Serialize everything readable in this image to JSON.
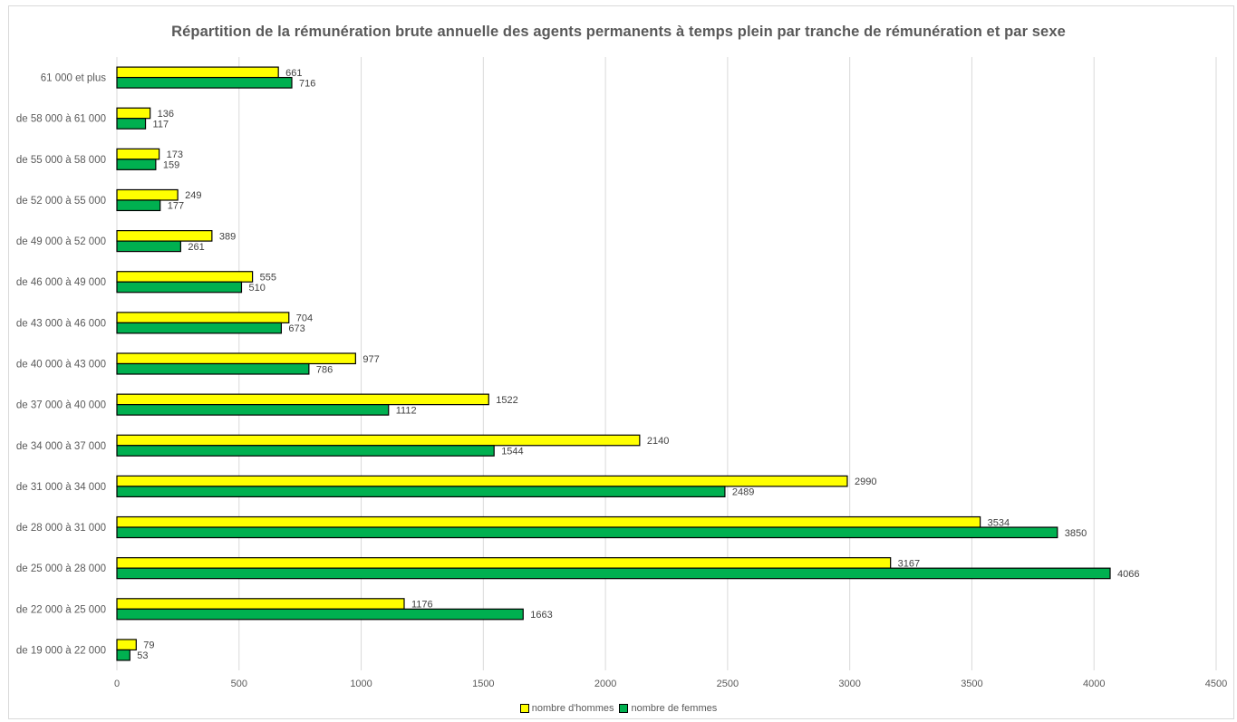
{
  "chart_data": {
    "type": "bar",
    "orientation": "horizontal",
    "title": "Répartition de la rémunération brute annuelle des agents permanents à temps plein par tranche de rémunération et par sexe",
    "categories": [
      "61 000 et plus",
      "de 58 000 à 61 000",
      "de 55 000 à 58 000",
      "de 52 000 à 55 000",
      "de 49 000 à 52 000",
      "de 46 000 à 49 000",
      "de 43 000 à 46 000",
      "de 40 000 à 43 000",
      "de 37 000 à 40 000",
      "de 34 000 à 37 000",
      "de 31 000 à 34 000",
      "de 28 000 à 31 000",
      "de 25 000 à 28 000",
      "de 22 000 à 25 000",
      "de 19 000 à 22 000"
    ],
    "series": [
      {
        "name": "nombre d'hommes",
        "color": "#ffff00",
        "values": [
          661,
          136,
          173,
          249,
          389,
          555,
          704,
          977,
          1522,
          2140,
          2990,
          3534,
          3167,
          1176,
          79
        ]
      },
      {
        "name": "nombre de femmes",
        "color": "#00b050",
        "values": [
          716,
          117,
          159,
          177,
          261,
          510,
          673,
          786,
          1112,
          1544,
          2489,
          3850,
          4066,
          1663,
          53
        ]
      }
    ],
    "xlim": [
      0,
      4500
    ],
    "xticks": [
      "0",
      "500",
      "1000",
      "1500",
      "2000",
      "2500",
      "3000",
      "3500",
      "4000",
      "4500"
    ],
    "grid": "vertical",
    "legend": "bottom"
  }
}
